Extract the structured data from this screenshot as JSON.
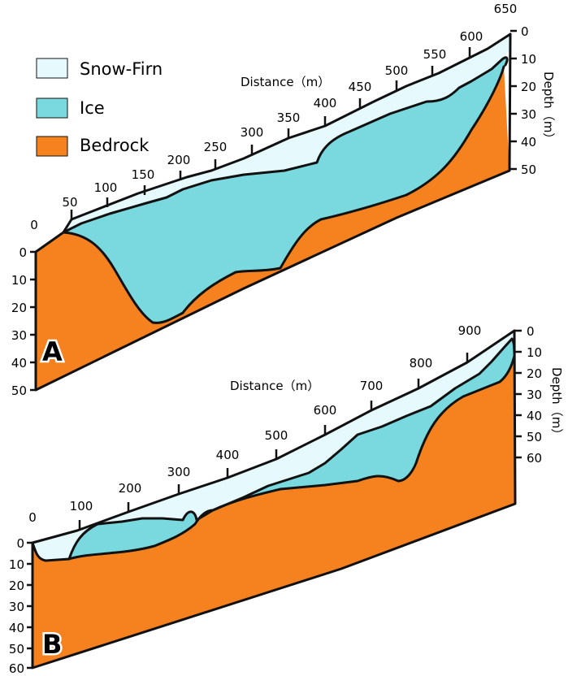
{
  "legend": {
    "snow_firn": "Snow-Firn",
    "ice": "Ice",
    "bedrock": "Bedrock"
  },
  "colors": {
    "snow_firn": "#e6fafd",
    "ice": "#79d9de",
    "bedrock": "#f5821f",
    "outline": "#111111"
  },
  "panels": [
    {
      "letter": "A",
      "distance_title": "Distance（m）",
      "depth_title": "Depth（m）",
      "distance_ticks": [
        "0",
        "50",
        "100",
        "150",
        "200",
        "250",
        "300",
        "350",
        "400",
        "450",
        "500",
        "550",
        "600",
        "650"
      ],
      "left_depth_ticks": [
        "0",
        "10",
        "20",
        "30",
        "40",
        "50"
      ],
      "right_depth_ticks": [
        "0",
        "10",
        "20",
        "30",
        "40",
        "50"
      ]
    },
    {
      "letter": "B",
      "distance_title": "Distance（m）",
      "depth_title": "Depth（m）",
      "distance_ticks": [
        "0",
        "100",
        "200",
        "300",
        "400",
        "500",
        "600",
        "700",
        "800",
        "900"
      ],
      "left_depth_ticks": [
        "0",
        "10",
        "20",
        "30",
        "40",
        "50",
        "60"
      ],
      "right_depth_ticks": [
        "0",
        "10",
        "20",
        "30",
        "40",
        "50",
        "60"
      ]
    }
  ]
}
